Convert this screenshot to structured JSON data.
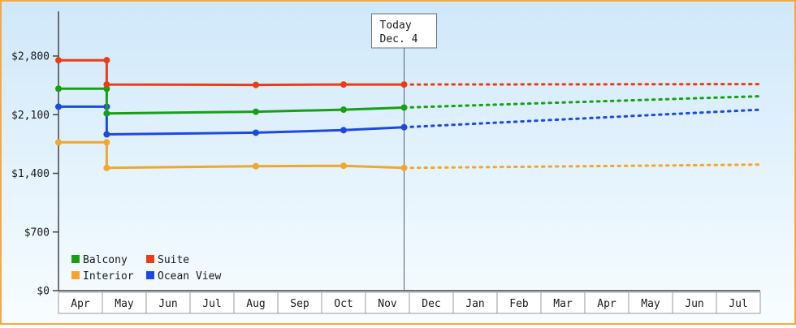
{
  "page": {
    "border_color": "#f5a93f",
    "background_top": "#cfe8fa",
    "background_bottom": "#f8fdff",
    "axis_color": "#444444",
    "text_color": "#1a1a1a"
  },
  "chart_data": {
    "type": "line",
    "title": "",
    "xlabel": "",
    "ylabel": "",
    "ylim": [
      0,
      2800
    ],
    "yticks": [
      0,
      700,
      1400,
      2100,
      2800
    ],
    "ytick_labels": [
      "$0",
      "$700",
      "$1,400",
      "$2,100",
      "$2,800"
    ],
    "x_categories": [
      "Apr",
      "May",
      "Jun",
      "Jul",
      "Aug",
      "Sep",
      "Oct",
      "Nov",
      "Dec",
      "Jan",
      "Feb",
      "Mar",
      "Apr",
      "May",
      "Jun",
      "Jul"
    ],
    "grid": false,
    "legend_position": "bottom-left",
    "today_marker": {
      "label_line1": "Today",
      "label_line2": "Dec. 4",
      "x": 7.88
    },
    "series": [
      {
        "name": "Interior",
        "color": "#f2a62b",
        "solid": [
          [
            0,
            1770
          ],
          [
            1.1,
            1770
          ],
          [
            1.1,
            1465
          ],
          [
            4.5,
            1485
          ],
          [
            6.5,
            1490
          ],
          [
            7.88,
            1465
          ]
        ],
        "dotted": [
          [
            7.88,
            1465
          ],
          [
            16,
            1505
          ]
        ]
      },
      {
        "name": "Ocean View",
        "color": "#1c49e4",
        "solid": [
          [
            0,
            2195
          ],
          [
            1.1,
            2195
          ],
          [
            1.1,
            1865
          ],
          [
            4.5,
            1885
          ],
          [
            6.5,
            1915
          ],
          [
            7.88,
            1950
          ]
        ],
        "dotted": [
          [
            7.88,
            1950
          ],
          [
            16,
            2160
          ]
        ]
      },
      {
        "name": "Balcony",
        "color": "#17a017",
        "solid": [
          [
            0,
            2410
          ],
          [
            1.1,
            2410
          ],
          [
            1.1,
            2115
          ],
          [
            4.5,
            2135
          ],
          [
            6.5,
            2160
          ],
          [
            7.88,
            2185
          ]
        ],
        "dotted": [
          [
            7.88,
            2185
          ],
          [
            16,
            2320
          ]
        ]
      },
      {
        "name": "Suite",
        "color": "#ea3d17",
        "solid": [
          [
            0,
            2750
          ],
          [
            1.1,
            2750
          ],
          [
            1.1,
            2460
          ],
          [
            4.5,
            2455
          ],
          [
            6.5,
            2460
          ],
          [
            7.88,
            2460
          ]
        ],
        "dotted": [
          [
            7.88,
            2460
          ],
          [
            16,
            2465
          ]
        ]
      }
    ],
    "legend": [
      {
        "label": "Balcony",
        "color": "#17a017"
      },
      {
        "label": "Suite",
        "color": "#ea3d17"
      },
      {
        "label": "Interior",
        "color": "#f2a62b"
      },
      {
        "label": "Ocean View",
        "color": "#1c49e4"
      }
    ]
  }
}
